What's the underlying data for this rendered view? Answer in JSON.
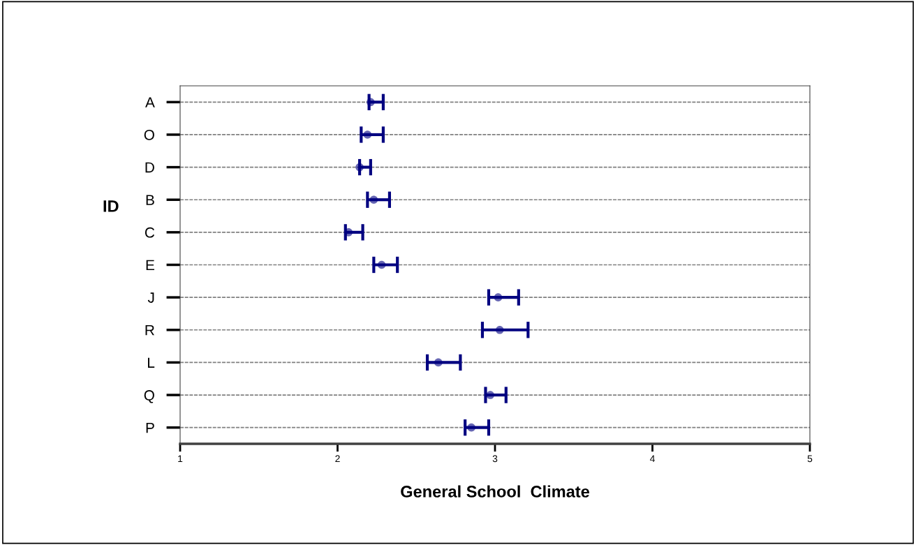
{
  "chart_data": {
    "type": "scatter",
    "orientation": "horizontal",
    "xlabel": "General School  Climate",
    "ylabel": "ID",
    "categories": [
      "A",
      "O",
      "D",
      "B",
      "C",
      "E",
      "J",
      "R",
      "L",
      "Q",
      "P"
    ],
    "values": [
      2.21,
      2.19,
      2.14,
      2.23,
      2.07,
      2.28,
      3.02,
      3.03,
      2.64,
      2.97,
      2.85
    ],
    "errors": [
      [
        2.2,
        2.29
      ],
      [
        2.15,
        2.29
      ],
      [
        2.14,
        2.21
      ],
      [
        2.19,
        2.33
      ],
      [
        2.05,
        2.16
      ],
      [
        2.23,
        2.38
      ],
      [
        2.96,
        3.15
      ],
      [
        2.92,
        3.21
      ],
      [
        2.57,
        2.78
      ],
      [
        2.94,
        3.07
      ],
      [
        2.81,
        2.96
      ]
    ],
    "color": "#000080",
    "marker": "circle",
    "grid": "y",
    "xlim": [
      1,
      5
    ],
    "xticks": [
      1,
      2,
      3,
      4,
      5
    ]
  }
}
